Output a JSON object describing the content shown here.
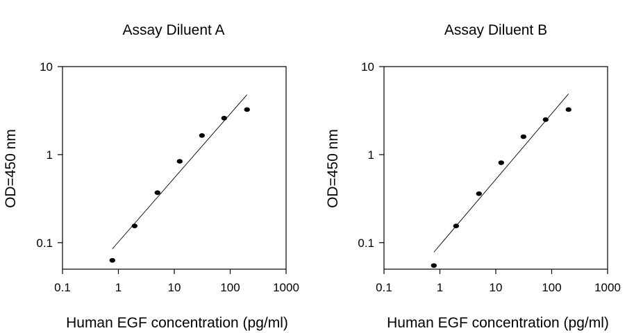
{
  "chart_data": [
    {
      "type": "scatter",
      "title": "Assay Diluent A",
      "xlabel": "Human EGF concentration (pg/ml)",
      "ylabel": "OD=450 nm",
      "xscale": "log",
      "yscale": "log",
      "xlim": [
        0.1,
        1000
      ],
      "ylim": [
        0.05,
        10
      ],
      "xticks": [
        "0.1",
        "1",
        "10",
        "100",
        "1000"
      ],
      "yticks": [
        "0.1",
        "1",
        "10"
      ],
      "grid": false,
      "series": [
        {
          "x": [
            0.78,
            1.95,
            5,
            12.5,
            31.25,
            78,
            200
          ],
          "y": [
            0.063,
            0.155,
            0.37,
            0.84,
            1.65,
            2.6,
            3.25
          ]
        }
      ],
      "fit_line": {
        "x": [
          0.78,
          200
        ],
        "y": [
          0.085,
          4.8
        ]
      }
    },
    {
      "type": "scatter",
      "title": "Assay Diluent B",
      "xlabel": "Human EGF concentration (pg/ml)",
      "ylabel": "OD=450 nm",
      "xscale": "log",
      "yscale": "log",
      "xlim": [
        0.1,
        1000
      ],
      "ylim": [
        0.05,
        10
      ],
      "xticks": [
        "0.1",
        "1",
        "10",
        "100",
        "1000"
      ],
      "yticks": [
        "0.1",
        "1",
        "10"
      ],
      "grid": false,
      "series": [
        {
          "x": [
            0.78,
            1.95,
            5,
            12.5,
            31.25,
            78,
            200
          ],
          "y": [
            0.055,
            0.155,
            0.36,
            0.81,
            1.6,
            2.5,
            3.25
          ]
        }
      ],
      "fit_line": {
        "x": [
          0.78,
          200
        ],
        "y": [
          0.078,
          4.9
        ]
      }
    }
  ]
}
